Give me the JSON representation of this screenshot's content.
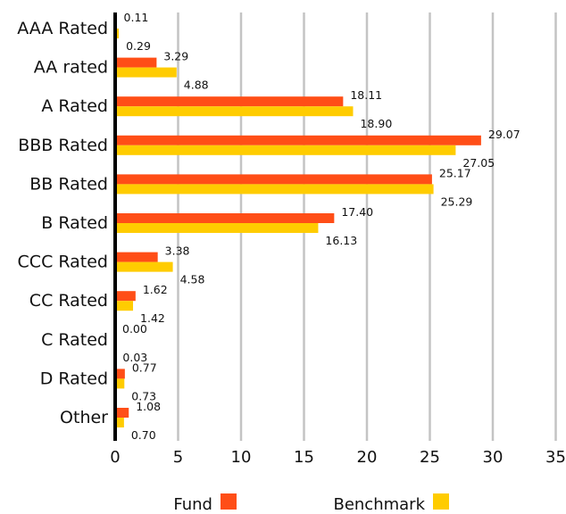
{
  "chart_data": {
    "type": "bar",
    "orientation": "horizontal",
    "categories": [
      "AAA Rated",
      "AA rated",
      "A Rated",
      "BBB Rated",
      "BB Rated",
      "B Rated",
      "CCC Rated",
      "CC Rated",
      "C Rated",
      "D Rated",
      "Other"
    ],
    "series": [
      {
        "name": "Fund",
        "color": "#FF4E17",
        "values": [
          0.11,
          3.29,
          18.11,
          29.07,
          25.17,
          17.4,
          3.38,
          1.62,
          0.0,
          0.77,
          1.08
        ],
        "labels": [
          "0.11",
          "3.29",
          "18.11",
          "29.07",
          "25.17",
          "17.40",
          "3.38",
          "1.62",
          "0.00",
          "0.77",
          "1.08"
        ]
      },
      {
        "name": "Benchmark",
        "color": "#FFCC00",
        "values": [
          0.29,
          4.88,
          18.9,
          27.05,
          25.29,
          16.13,
          4.58,
          1.42,
          0.03,
          0.73,
          0.7
        ],
        "labels": [
          "0.29",
          "4.88",
          "18.90",
          "27.05",
          "25.29",
          "16.13",
          "4.58",
          "1.42",
          "0.03",
          "0.73",
          "0.70"
        ]
      }
    ],
    "xlim": [
      0,
      35
    ],
    "xticks": [
      "0",
      "5",
      "10",
      "15",
      "20",
      "25",
      "30",
      "35"
    ],
    "grid": "vertical",
    "legend_position": "bottom",
    "title": "",
    "xlabel": "",
    "ylabel": ""
  }
}
